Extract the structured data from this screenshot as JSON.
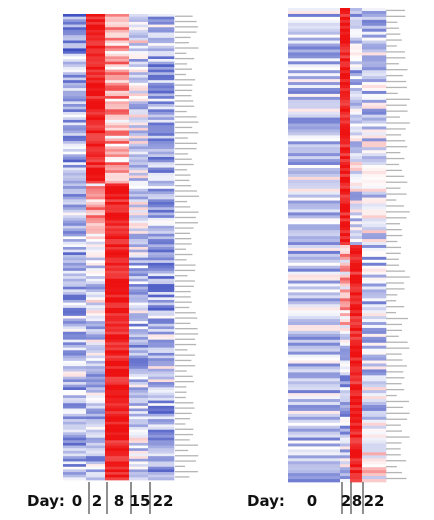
{
  "chart_data": [
    {
      "type": "heatmap",
      "x_axis_title": "Day:",
      "categories": [
        "0",
        "2",
        "8",
        "15",
        "22"
      ],
      "category_label_for_timepoint": {
        "0": "0",
        "2": "2",
        "8": "8",
        "15": "15",
        "22": "22"
      },
      "value_scale": {
        "low_color": "#3b4cc0",
        "mid_color": "#ffffff",
        "high_color": "#ee1111",
        "range": [
          -1,
          1
        ]
      },
      "row_count": 176,
      "gene_labels_legible": false,
      "blocks": [
        {
          "rows": 16,
          "values": [
            -0.55,
            0.9,
            0.25,
            -0.1,
            -0.35
          ]
        },
        {
          "rows": 48,
          "values": [
            -0.45,
            0.95,
            0.35,
            -0.2,
            -0.45
          ]
        },
        {
          "rows": 22,
          "values": [
            -0.35,
            0.3,
            0.9,
            -0.15,
            -0.4
          ]
        },
        {
          "rows": 28,
          "values": [
            -0.45,
            -0.2,
            0.95,
            -0.3,
            -0.5
          ]
        },
        {
          "rows": 26,
          "values": [
            -0.3,
            -0.3,
            0.95,
            -0.35,
            -0.3
          ]
        },
        {
          "rows": 36,
          "values": [
            -0.4,
            -0.35,
            0.95,
            -0.2,
            -0.45
          ]
        }
      ]
    },
    {
      "type": "heatmap",
      "x_axis_title": "Day:",
      "categories": [
        "0",
        "2",
        "8",
        "22"
      ],
      "value_scale": {
        "low_color": "#3b4cc0",
        "mid_color": "#ffffff",
        "high_color": "#ee1111",
        "range": [
          -1,
          1
        ]
      },
      "row_count": 160,
      "gene_labels_legible": false,
      "blocks": [
        {
          "rows": 40,
          "values": [
            -0.3,
            1.0,
            -0.35,
            -0.3
          ]
        },
        {
          "rows": 40,
          "values": [
            -0.25,
            0.95,
            -0.2,
            -0.2
          ]
        },
        {
          "rows": 30,
          "values": [
            -0.3,
            0.2,
            0.95,
            -0.3
          ]
        },
        {
          "rows": 32,
          "values": [
            -0.3,
            -0.35,
            0.95,
            -0.25
          ]
        },
        {
          "rows": 18,
          "values": [
            -0.35,
            -0.3,
            0.9,
            0.1
          ]
        }
      ]
    }
  ]
}
